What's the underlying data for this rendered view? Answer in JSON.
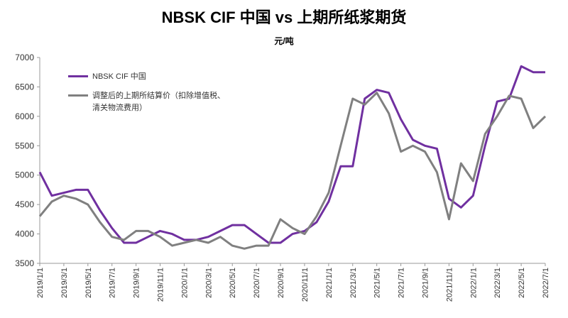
{
  "chart_data": {
    "type": "line",
    "title": "NBSK CIF 中国 vs 上期所纸浆期货",
    "subtitle": "元/吨",
    "x": [
      "2019/1/1",
      "2019/2/1",
      "2019/3/1",
      "2019/4/1",
      "2019/5/1",
      "2019/6/1",
      "2019/7/1",
      "2019/8/1",
      "2019/9/1",
      "2019/10/1",
      "2019/11/1",
      "2019/12/1",
      "2020/1/1",
      "2020/2/1",
      "2020/3/1",
      "2020/4/1",
      "2020/5/1",
      "2020/6/1",
      "2020/7/1",
      "2020/8/1",
      "2020/9/1",
      "2020/10/1",
      "2020/11/1",
      "2020/12/1",
      "2021/1/1",
      "2021/2/1",
      "2021/3/1",
      "2021/4/1",
      "2021/5/1",
      "2021/6/1",
      "2021/7/1",
      "2021/8/1",
      "2021/9/1",
      "2021/10/1",
      "2021/11/1",
      "2021/12/1",
      "2022/1/1",
      "2022/2/1",
      "2022/3/1",
      "2022/4/1",
      "2022/5/1",
      "2022/6/1",
      "2022/7/1"
    ],
    "series": [
      {
        "name": "NBSK CIF 中国",
        "color": "#7030a0",
        "values": [
          5050,
          4650,
          4700,
          4750,
          4750,
          4400,
          4100,
          3850,
          3850,
          3950,
          4050,
          4000,
          3900,
          3900,
          3950,
          4050,
          4150,
          4150,
          4000,
          3850,
          3850,
          4000,
          4050,
          4200,
          4550,
          5150,
          5150,
          6300,
          6450,
          6400,
          5950,
          5600,
          5500,
          5450,
          4600,
          4450,
          4650,
          5500,
          6250,
          6300,
          6850,
          6750,
          6750
        ]
      },
      {
        "name": "调整后的上期所结算价（扣除增值税、清关物流费用）",
        "color": "#808080",
        "values": [
          4300,
          4550,
          4650,
          4600,
          4500,
          4200,
          3950,
          3900,
          4050,
          4050,
          3950,
          3800,
          3850,
          3900,
          3850,
          3950,
          3800,
          3750,
          3800,
          3800,
          4250,
          4100,
          4000,
          4300,
          4700,
          5500,
          6300,
          6200,
          6400,
          6050,
          5400,
          5500,
          5400,
          5050,
          4250,
          5200,
          4900,
          5700,
          6000,
          6350,
          6300,
          5800,
          6000
        ]
      }
    ],
    "xlim": [
      "2019/1/1",
      "2022/7/1"
    ],
    "xticks": [
      "2019/1/1",
      "2019/3/1",
      "2019/5/1",
      "2019/7/1",
      "2019/9/1",
      "2019/11/1",
      "2020/1/1",
      "2020/3/1",
      "2020/5/1",
      "2020/7/1",
      "2020/9/1",
      "2020/11/1",
      "2021/1/1",
      "2021/3/1",
      "2021/5/1",
      "2021/7/1",
      "2021/9/1",
      "2021/11/1",
      "2022/1/1",
      "2022/3/1",
      "2022/5/1",
      "2022/7/1"
    ],
    "ylim": [
      3500,
      7000
    ],
    "yticks": [
      3500,
      4000,
      4500,
      5000,
      5500,
      6000,
      6500,
      7000
    ],
    "legend": "upper left"
  }
}
